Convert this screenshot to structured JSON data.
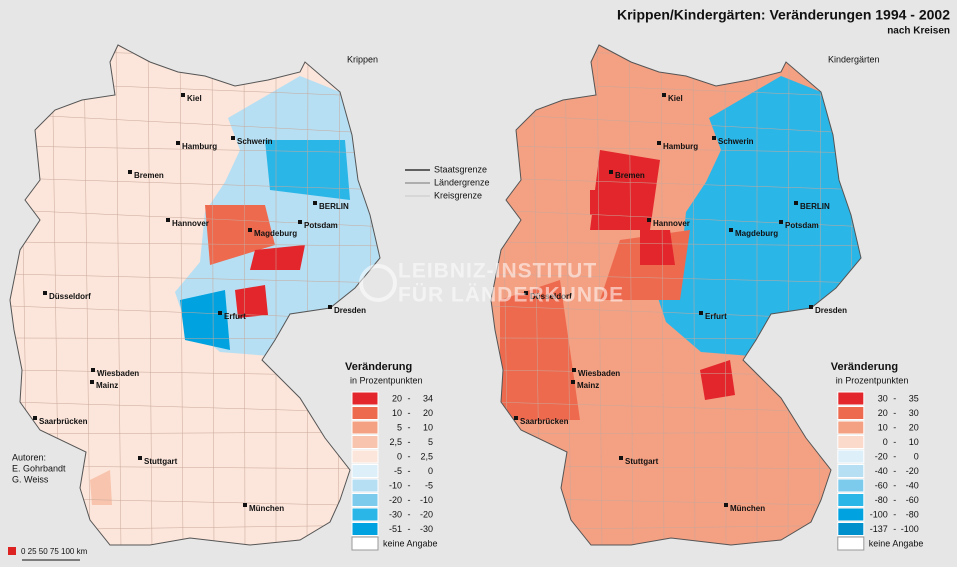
{
  "header": {
    "title": "Krippen/Kindergärten: Veränderungen 1994 - 2002",
    "subtitle": "nach Kreisen"
  },
  "maps": [
    {
      "label": "Krippen",
      "legend": {
        "title": "Veränderung",
        "unit": "in Prozentpunkten",
        "no_data": "keine Angabe",
        "classes": [
          {
            "from": "20",
            "to": "34",
            "color": "#e3262b"
          },
          {
            "from": "10",
            "to": "20",
            "color": "#ee6a4f"
          },
          {
            "from": "5",
            "to": "10",
            "color": "#f4a083"
          },
          {
            "from": "2,5",
            "to": "5",
            "color": "#f8c4ad"
          },
          {
            "from": "0",
            "to": "2,5",
            "color": "#fce5da"
          },
          {
            "from": "-5",
            "to": "0",
            "color": "#ddeff9"
          },
          {
            "from": "-10",
            "to": "-5",
            "color": "#b6dff3"
          },
          {
            "from": "-20",
            "to": "-10",
            "color": "#7ccbed"
          },
          {
            "from": "-30",
            "to": "-20",
            "color": "#2bb6e8"
          },
          {
            "from": "-51",
            "to": "-30",
            "color": "#00a3e0"
          }
        ]
      }
    },
    {
      "label": "Kindergärten",
      "legend": {
        "title": "Veränderung",
        "unit": "in Prozentpunkten",
        "no_data": "keine Angabe",
        "classes": [
          {
            "from": "30",
            "to": "35",
            "color": "#e3262b"
          },
          {
            "from": "20",
            "to": "30",
            "color": "#ee6a4f"
          },
          {
            "from": "10",
            "to": "20",
            "color": "#f4a083"
          },
          {
            "from": "0",
            "to": "10",
            "color": "#fbd9cb"
          },
          {
            "from": "-20",
            "to": "0",
            "color": "#ddeff9"
          },
          {
            "from": "-40",
            "to": "-20",
            "color": "#b6dff3"
          },
          {
            "from": "-60",
            "to": "-40",
            "color": "#7ccbed"
          },
          {
            "from": "-80",
            "to": "-60",
            "color": "#2bb6e8"
          },
          {
            "from": "-100",
            "to": "-80",
            "color": "#00a3e0"
          },
          {
            "from": "-137",
            "to": "-100",
            "color": "#0090cc"
          }
        ]
      }
    }
  ],
  "cities": [
    "Kiel",
    "Hamburg",
    "Schwerin",
    "Bremen",
    "Hannover",
    "Magdeburg",
    "Potsdam",
    "BERLIN",
    "Düsseldorf",
    "Erfurt",
    "Dresden",
    "Wiesbaden",
    "Mainz",
    "Saarbrücken",
    "Stuttgart",
    "München"
  ],
  "boundaries": [
    "Staatsgrenze",
    "Ländergrenze",
    "Kreisgrenze"
  ],
  "watermark": [
    "LEIBNIZ-INSTITUT",
    "FÜR LÄNDERKUNDE"
  ],
  "authors": [
    "Autoren:",
    "E. Gohrbandt",
    "G. Weiss"
  ],
  "scale": "0  25  50  75 100 km"
}
